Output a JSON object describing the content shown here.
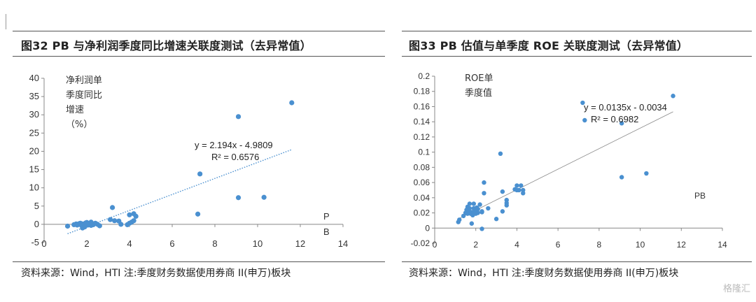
{
  "left": {
    "title": "图32 PB 与净利润季度同比增速关联度测试（去异常值）",
    "source": "资料来源：Wind，HTI 注:季度财务数据使用券商 II(申万)板块",
    "chart_data": {
      "type": "scatter",
      "x_ticks": [
        0,
        2,
        4,
        6,
        8,
        10,
        12,
        14
      ],
      "y_ticks": [
        -5,
        0,
        5,
        10,
        15,
        20,
        25,
        30,
        35,
        40
      ],
      "xlim": [
        0,
        14
      ],
      "ylim": [
        -5,
        40
      ],
      "ylabel_lines": [
        "净利润单",
        "季度同比",
        "增速",
        "（%）"
      ],
      "xlabel_lines": [
        "P",
        "B"
      ],
      "trendline": {
        "slope": 2.194,
        "intercept": -4.9809,
        "x_start": 1.1,
        "x_end": 11.6,
        "style": "dotted"
      },
      "equation": "y = 2.194x - 4.9809",
      "r2": "R² = 0.6576",
      "color": "#4a90d0",
      "x": [
        1.1,
        1.4,
        1.5,
        1.55,
        1.6,
        1.65,
        1.7,
        1.75,
        1.8,
        1.85,
        1.9,
        1.95,
        2.0,
        2.05,
        2.1,
        2.15,
        2.2,
        2.3,
        2.4,
        2.5,
        2.6,
        1.8,
        1.9,
        2.0,
        2.2,
        3.1,
        3.2,
        3.3,
        3.5,
        3.6,
        3.9,
        4.0,
        4.1,
        4.2,
        4.3,
        4.2,
        4.0,
        7.2,
        7.3,
        9.1,
        9.1,
        10.3,
        11.6
      ],
      "y": [
        -0.5,
        -0.1,
        0.1,
        -0.2,
        0.0,
        0.2,
        0.3,
        -0.3,
        0.1,
        0.0,
        -0.6,
        0.4,
        0.5,
        -0.2,
        0.0,
        0.3,
        0.6,
        -0.1,
        0.3,
        0.0,
        -0.4,
        -1.0,
        -0.7,
        0.2,
        -0.3,
        1.3,
        4.6,
        1.0,
        0.9,
        0.0,
        -0.1,
        0.3,
        0.6,
        1.0,
        2.2,
        2.9,
        2.6,
        2.8,
        13.8,
        29.5,
        7.3,
        7.4,
        33.3
      ]
    }
  },
  "right": {
    "title": "图33 PB 估值与单季度 ROE 关联度测试（去异常值）",
    "source": "资料来源：Wind，HTI 注:季度财务数据使用券商 II(申万)板块",
    "chart_data": {
      "type": "scatter",
      "x_ticks": [
        0,
        2,
        4,
        6,
        8,
        10,
        12,
        14
      ],
      "y_ticks": [
        -0.02,
        0,
        0.02,
        0.04,
        0.06,
        0.08,
        0.1,
        0.12,
        0.14,
        0.16,
        0.18,
        0.2
      ],
      "y_tick_labels": [
        "-0.02",
        "0",
        "0.02",
        "0.04",
        "0.06",
        "0.08",
        "0.1",
        "0.12",
        "0.14",
        "0.16",
        "0.18",
        "0.2"
      ],
      "xlim": [
        0,
        14
      ],
      "ylim": [
        -0.02,
        0.2
      ],
      "ylabel_lines": [
        "ROE单",
        "季度值"
      ],
      "xlabel": "PB",
      "trendline": {
        "slope": 0.0135,
        "intercept": -0.0034,
        "x_start": 1.1,
        "x_end": 11.6,
        "style": "solid"
      },
      "equation": "y = 0.0135x - 0.0034",
      "r2": "R² = 0.6982",
      "color": "#4a90d0",
      "x": [
        1.15,
        1.2,
        1.4,
        1.5,
        1.55,
        1.6,
        1.6,
        1.65,
        1.7,
        1.7,
        1.75,
        1.8,
        1.85,
        1.9,
        1.9,
        1.95,
        2.0,
        2.0,
        2.05,
        2.1,
        2.1,
        2.2,
        2.3,
        2.3,
        2.4,
        2.4,
        2.6,
        3.0,
        3.2,
        3.3,
        3.3,
        3.5,
        3.5,
        3.5,
        3.9,
        4.0,
        4.0,
        4.1,
        4.2,
        4.3,
        4.3,
        7.2,
        7.3,
        9.1,
        9.1,
        10.3,
        11.6,
        1.8,
        2.3
      ],
      "y": [
        0.008,
        0.011,
        0.016,
        0.02,
        0.024,
        0.028,
        0.019,
        0.022,
        0.026,
        0.032,
        0.019,
        0.021,
        0.017,
        0.026,
        0.032,
        0.022,
        0.024,
        0.019,
        0.027,
        0.02,
        0.025,
        0.031,
        0.021,
        0.022,
        0.06,
        0.046,
        0.026,
        0.012,
        0.098,
        0.048,
        0.022,
        0.037,
        0.033,
        0.03,
        0.051,
        0.056,
        0.05,
        0.05,
        0.056,
        0.05,
        0.046,
        0.165,
        0.142,
        0.138,
        0.067,
        0.072,
        0.174,
        0.006,
        -0.001
      ]
    }
  },
  "watermark": "格隆汇"
}
